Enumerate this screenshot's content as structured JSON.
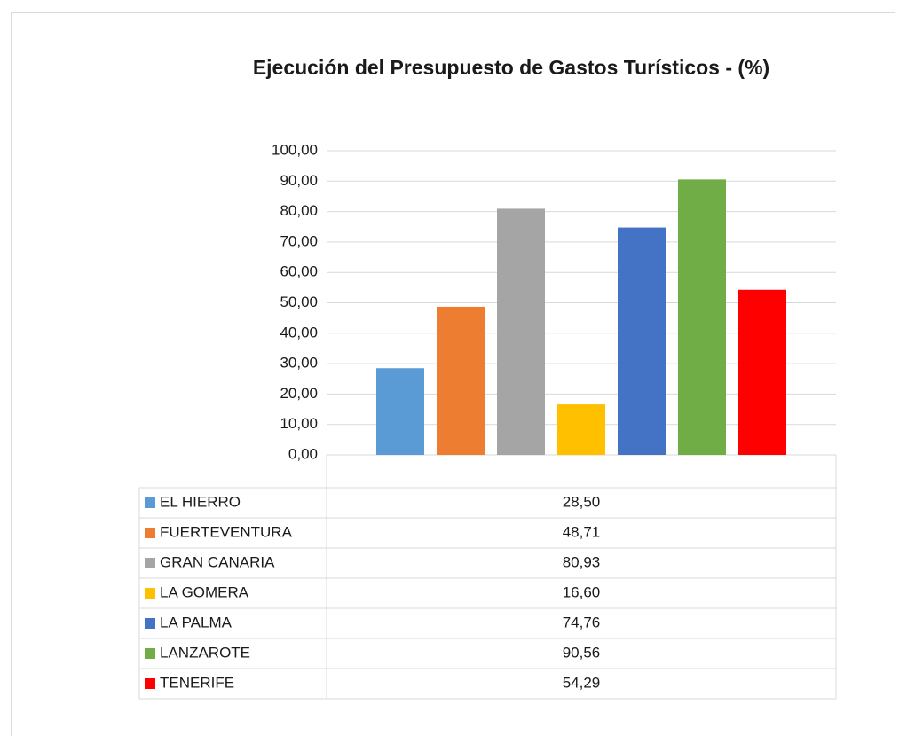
{
  "chart_data": {
    "type": "bar",
    "title": "Ejecución del Presupuesto de Gastos Turísticos - (%)",
    "categories": [
      null
    ],
    "series": [
      {
        "name": "EL HIERRO",
        "color": "#5b9bd5",
        "values": [
          28.5
        ],
        "value_labels": [
          "28,50"
        ]
      },
      {
        "name": "FUERTEVENTURA",
        "color": "#ed7d31",
        "values": [
          48.71
        ],
        "value_labels": [
          "48,71"
        ]
      },
      {
        "name": "GRAN CANARIA",
        "color": "#a5a5a5",
        "values": [
          80.93
        ],
        "value_labels": [
          "80,93"
        ]
      },
      {
        "name": "LA GOMERA",
        "color": "#ffc000",
        "values": [
          16.6
        ],
        "value_labels": [
          "16,60"
        ]
      },
      {
        "name": "LA PALMA",
        "color": "#4472c4",
        "values": [
          74.76
        ],
        "value_labels": [
          "74,76"
        ]
      },
      {
        "name": "LANZAROTE",
        "color": "#70ad47",
        "values": [
          90.56
        ],
        "value_labels": [
          "90,56"
        ]
      },
      {
        "name": "TENERIFE",
        "color": "#ff0000",
        "values": [
          54.29
        ],
        "value_labels": [
          "54,29"
        ]
      }
    ],
    "ylim": [
      0,
      100
    ],
    "yticks": [
      {
        "value": 0,
        "label": "0,00"
      },
      {
        "value": 10,
        "label": "10,00"
      },
      {
        "value": 20,
        "label": "20,00"
      },
      {
        "value": 30,
        "label": "30,00"
      },
      {
        "value": 40,
        "label": "40,00"
      },
      {
        "value": 50,
        "label": "50,00"
      },
      {
        "value": 60,
        "label": "60,00"
      },
      {
        "value": 70,
        "label": "70,00"
      },
      {
        "value": 80,
        "label": "80,00"
      },
      {
        "value": 90,
        "label": "90,00"
      },
      {
        "value": 100,
        "label": "100,00"
      }
    ],
    "grid": true
  }
}
